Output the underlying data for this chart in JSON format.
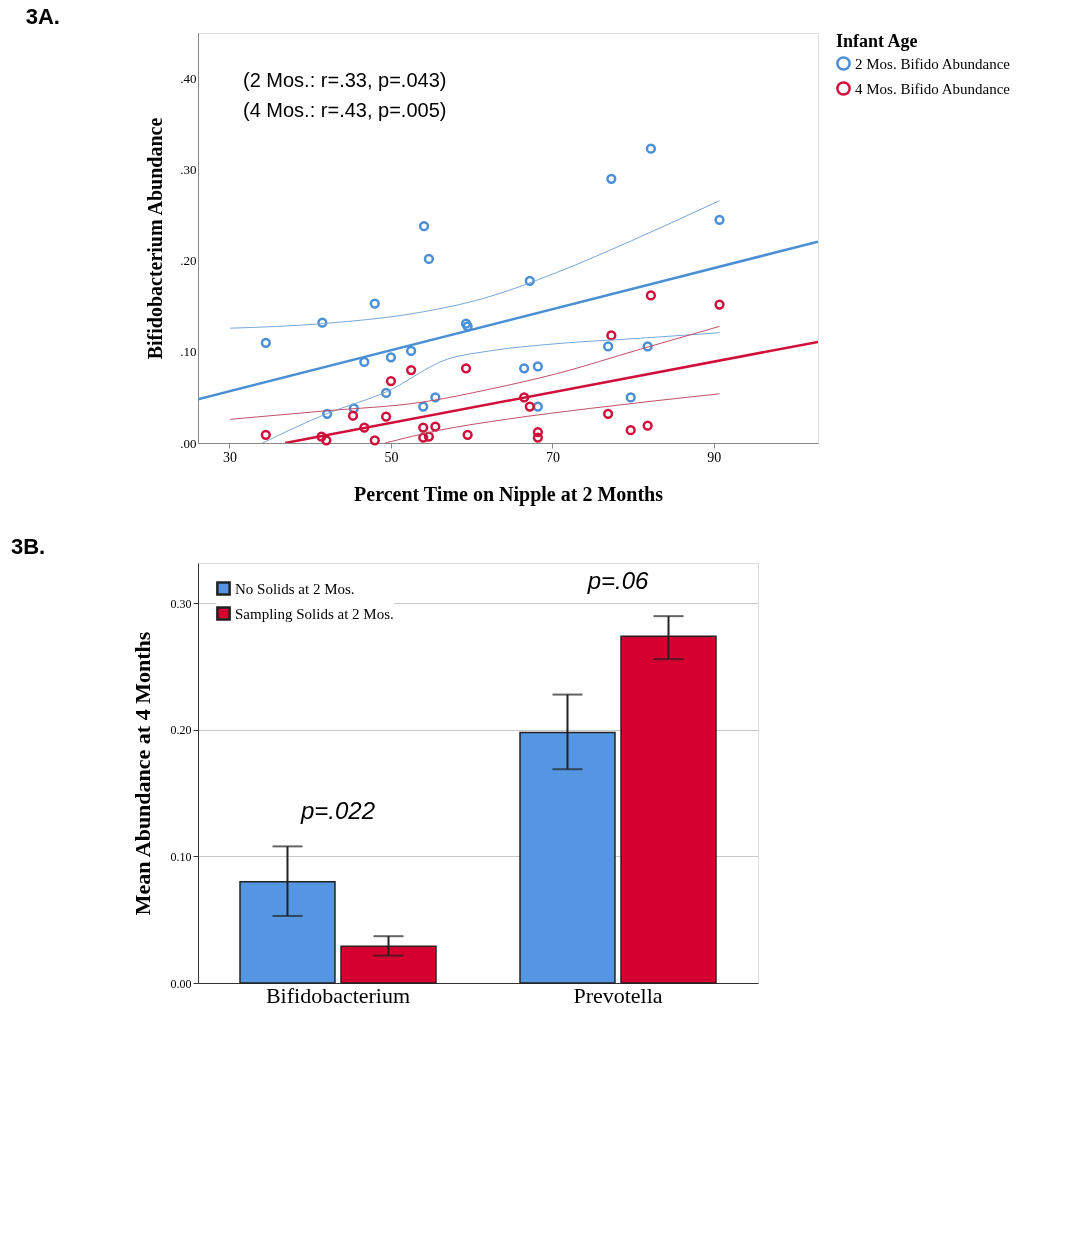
{
  "chart_data": [
    {
      "type": "scatter",
      "title": "3A.",
      "xlabel": "Percent Time on Nipple at 2 Months",
      "ylabel": "Bifidobacterium Abundance",
      "legend_title": "Infant Age",
      "legend": "right",
      "marker": "circle",
      "grid": false,
      "xlim": [
        26.1,
        102.9
      ],
      "ylim": [
        0,
        0.45
      ],
      "xticks": [
        30,
        50,
        70,
        90
      ],
      "yticks": [
        {
          "value": 0,
          "label": ".00"
        },
        {
          "value": 0.1,
          "label": ".10"
        },
        {
          "value": 0.2,
          "label": ".20"
        },
        {
          "value": 0.3,
          "label": ".30"
        },
        {
          "value": 0.4,
          "label": ".40"
        }
      ],
      "annotations": [
        "(2 Mos.: r=.33, p=.043)",
        "(4 Mos.: r=.43, p=.005)"
      ],
      "series": [
        {
          "name": "2 Mos. Bifido Abundance",
          "type": "scatter",
          "color": "#4a8fd6",
          "x": [
            34.5,
            41.5,
            48.0,
            54.1,
            54.7,
            46.7,
            50.0,
            52.5,
            59.3,
            59.5,
            49.4,
            55.5,
            54.0,
            45.4,
            42.1,
            67.2,
            66.5,
            68.2,
            68.2,
            77.3,
            82.2,
            90.7,
            76.9,
            81.8,
            79.7
          ],
          "values": [
            0.11,
            0.132,
            0.153,
            0.238,
            0.202,
            0.089,
            0.094,
            0.101,
            0.131,
            0.128,
            0.055,
            0.05,
            0.04,
            0.038,
            0.032,
            0.178,
            0.082,
            0.084,
            0.04,
            0.29,
            0.323,
            0.245,
            0.106,
            0.106,
            0.05
          ]
        },
        {
          "name": "4 Mos. Bifido Abundance",
          "type": "scatter",
          "color": "#d0103a",
          "x": [
            34.5,
            41.4,
            42.0,
            45.3,
            46.7,
            48.0,
            49.4,
            50.0,
            52.5,
            54.0,
            55.5,
            54.0,
            54.7,
            59.3,
            59.5,
            66.5,
            67.2,
            68.2,
            68.2,
            77.3,
            76.9,
            79.7,
            81.8,
            82.2,
            90.7
          ],
          "values": [
            0.009,
            0.007,
            0.003,
            0.03,
            0.017,
            0.003,
            0.029,
            0.068,
            0.08,
            0.017,
            0.018,
            0.006,
            0.007,
            0.082,
            0.009,
            0.05,
            0.04,
            0.012,
            0.006,
            0.118,
            0.032,
            0.014,
            0.019,
            0.162,
            0.152
          ]
        },
        {
          "type": "line",
          "marker": "none",
          "color": "#4a8fd6",
          "x": [
            26.1,
            102.9
          ],
          "values": [
            0.048,
            0.221
          ]
        },
        {
          "type": "line",
          "marker": "none",
          "color": "#7aa7d8",
          "x": [
            30.1,
            41.5,
            54.0,
            61.2,
            70.5,
            79.8,
            90.7
          ],
          "values": [
            0.126,
            0.131,
            0.144,
            0.158,
            0.187,
            0.222,
            0.266
          ]
        },
        {
          "type": "line",
          "marker": "none",
          "color": "#7aa7d8",
          "x": [
            34.1,
            42.0,
            49.4,
            57.0,
            62.2,
            70.5,
            80.9,
            90.7
          ],
          "values": [
            0.0,
            0.032,
            0.056,
            0.092,
            0.101,
            0.109,
            0.115,
            0.121
          ]
        },
        {
          "type": "line",
          "marker": "none",
          "color": "#d0103a",
          "x": [
            36.9,
            102.9
          ],
          "values": [
            0.0,
            0.111
          ]
        },
        {
          "type": "line",
          "marker": "none",
          "color": "#c0506a",
          "x": [
            30.1,
            41.5,
            54.0,
            62.2,
            70.5,
            80.9,
            90.7
          ],
          "values": [
            0.026,
            0.035,
            0.045,
            0.059,
            0.076,
            0.103,
            0.128
          ]
        },
        {
          "type": "line",
          "marker": "none",
          "color": "#c0506a",
          "x": [
            49.3,
            56.0,
            64.3,
            74.7,
            90.7
          ],
          "values": [
            0.0,
            0.014,
            0.026,
            0.038,
            0.054
          ]
        }
      ]
    },
    {
      "type": "bar",
      "title": "3B.",
      "ylabel": "Mean Abundance at 4 Months",
      "legend": "top left",
      "grid": "y",
      "categories": [
        "Bifidobacterium",
        "Prevotella"
      ],
      "ylim": [
        0,
        0.332
      ],
      "yticks": [
        {
          "value": 0,
          "label": "0.00"
        },
        {
          "value": 0.1,
          "label": "0.10"
        },
        {
          "value": 0.2,
          "label": "0.20"
        },
        {
          "value": 0.3,
          "label": "0.30"
        }
      ],
      "annotations": [
        "p=.022",
        "p=.06"
      ],
      "series": [
        {
          "name": "No Solids at 2 Mos.",
          "color": "#5596e3",
          "values": [
            0.08,
            0.198
          ],
          "errors": [
            [
              0.053,
              0.108
            ],
            [
              0.169,
              0.228
            ]
          ]
        },
        {
          "name": "Sampling Solids at 2 Mos.",
          "color": "#d5002f",
          "values": [
            0.029,
            0.274
          ],
          "errors": [
            [
              0.0216,
              0.037
            ],
            [
              0.256,
              0.29
            ]
          ]
        }
      ]
    }
  ]
}
